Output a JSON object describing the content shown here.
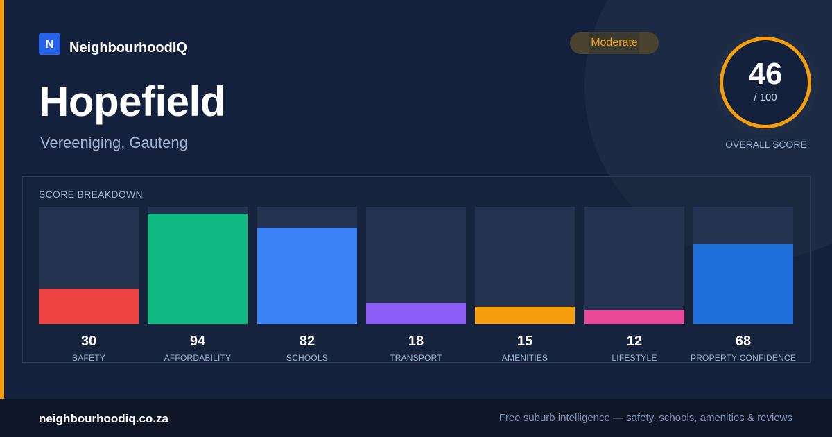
{
  "brand": {
    "logo_letter": "N",
    "name": "NeighbourhoodIQ"
  },
  "suburb": {
    "name": "Hopefield",
    "location": "Vereeniging, Gauteng"
  },
  "rating": {
    "label": "Moderate",
    "color": "#f59e0b"
  },
  "overall": {
    "score": "46",
    "max": "/ 100",
    "label": "OVERALL SCORE"
  },
  "breakdown": {
    "title": "SCORE BREAKDOWN",
    "items": [
      {
        "label": "SAFETY",
        "value": "30",
        "color": "#ef4444"
      },
      {
        "label": "AFFORDABILITY",
        "value": "94",
        "color": "#10b981"
      },
      {
        "label": "SCHOOLS",
        "value": "82",
        "color": "#3b82f6"
      },
      {
        "label": "TRANSPORT",
        "value": "18",
        "color": "#8b5cf6"
      },
      {
        "label": "AMENITIES",
        "value": "15",
        "color": "#f59e0b"
      },
      {
        "label": "LIFESTYLE",
        "value": "12",
        "color": "#ec4899"
      },
      {
        "label": "PROPERTY CONFIDENCE",
        "value": "68",
        "color": "#1d6ed8"
      }
    ]
  },
  "footer": {
    "url": "neighbourhoodiq.co.za",
    "tagline": "Free suburb intelligence — safety, schools, amenities & reviews"
  }
}
